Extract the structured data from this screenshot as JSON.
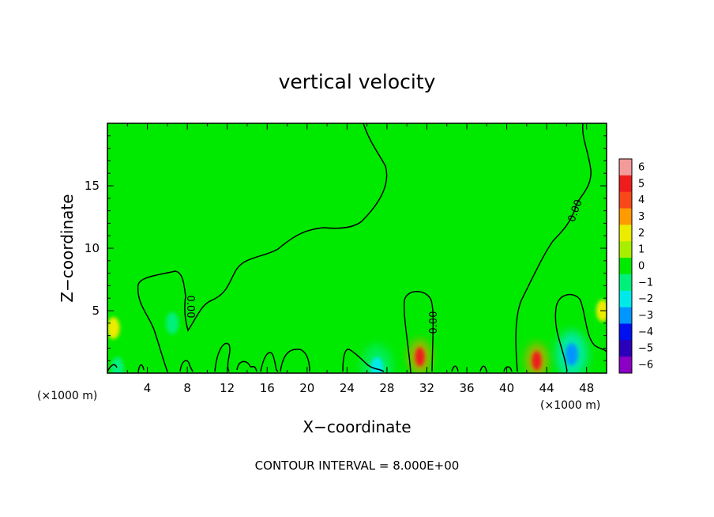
{
  "chart_data": {
    "type": "heatmap",
    "title": "vertical velocity",
    "xlabel": "X−coordinate",
    "ylabel": "Z−coordinate",
    "x_unit_label_left": "(×1000 m)",
    "x_unit_label_right": "(×1000 m)",
    "footer": "CONTOUR INTERVAL = 8.000E+00",
    "xlim": [
      0,
      50
    ],
    "ylim": [
      0,
      20
    ],
    "x_ticks": [
      4,
      8,
      12,
      16,
      20,
      24,
      28,
      32,
      36,
      40,
      44,
      48
    ],
    "x_tick_labels": [
      "4",
      "8",
      "12",
      "16",
      "20",
      "24",
      "28",
      "32",
      "36",
      "40",
      "44",
      "48"
    ],
    "y_ticks": [
      5,
      10,
      15
    ],
    "y_tick_labels": [
      "5",
      "10",
      "15"
    ],
    "contour_label": "0.00",
    "background_value": 0.3,
    "colorbar": {
      "levels": [
        6,
        5,
        4,
        3,
        2,
        1,
        0,
        -1,
        -2,
        -3,
        -4,
        -5,
        -6
      ],
      "labels": [
        "6",
        "5",
        "4",
        "3",
        "2",
        "1",
        "0",
        "−1",
        "−2",
        "−3",
        "−4",
        "−5",
        "−6"
      ],
      "colors": [
        "#f39a9a",
        "#ee1c1c",
        "#f7481a",
        "#ff9a00",
        "#ecec00",
        "#a8ee00",
        "#00ea00",
        "#00f07c",
        "#00eaea",
        "#0096ff",
        "#0010ee",
        "#2a00b8",
        "#8a00c4"
      ]
    },
    "features": [
      {
        "kind": "updraft",
        "x": 31.3,
        "z": 1.3,
        "value": 5.2
      },
      {
        "kind": "updraft",
        "x": 43.0,
        "z": 1.0,
        "value": 5.0
      },
      {
        "kind": "weak-updraft",
        "x": 0.6,
        "z": 3.6,
        "value": 2.0
      },
      {
        "kind": "weak-updraft",
        "x": 49.6,
        "z": 5.0,
        "value": 2.2
      },
      {
        "kind": "downdraft",
        "x": 46.5,
        "z": 1.5,
        "value": -2.6
      },
      {
        "kind": "downdraft",
        "x": 6.5,
        "z": 4.0,
        "value": -1.5
      },
      {
        "kind": "downdraft",
        "x": 27.0,
        "z": 0.4,
        "value": -2.5
      },
      {
        "kind": "downdraft",
        "x": 1.0,
        "z": 0.4,
        "value": -1.5
      }
    ]
  },
  "colors": {
    "background": "#ffffff",
    "field": "#00ea00",
    "contour": "#000000"
  }
}
